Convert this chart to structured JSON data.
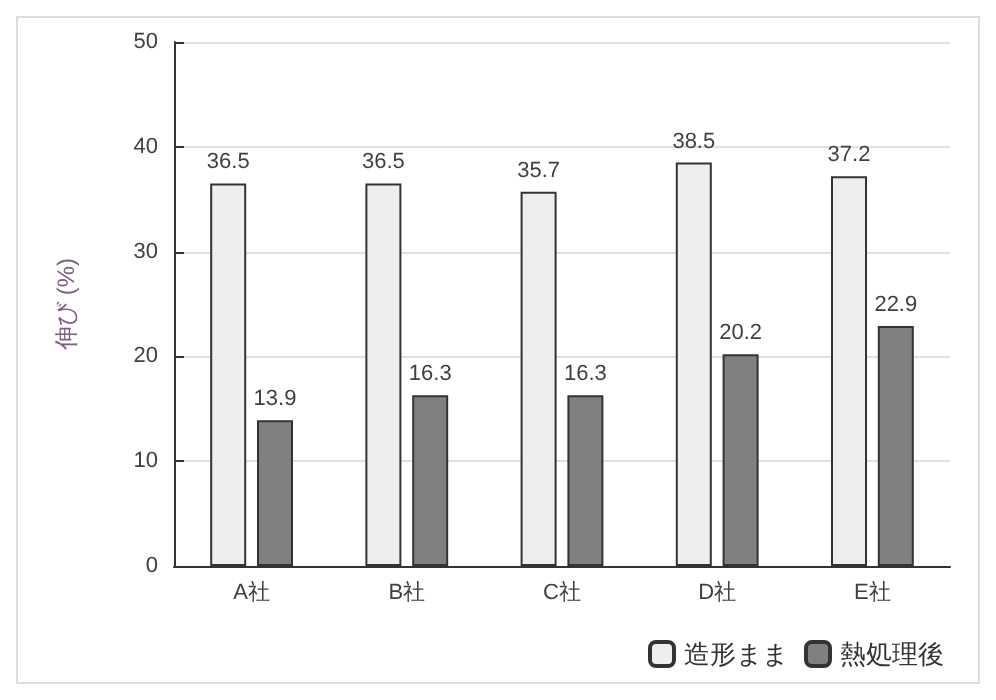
{
  "chart_data": {
    "type": "bar",
    "ylabel": "伸び (%)",
    "categories": [
      "A社",
      "B社",
      "C社",
      "D社",
      "E社"
    ],
    "series": [
      {
        "name": "造形まま",
        "color": "#eeeeee",
        "values": [
          36.5,
          36.5,
          35.7,
          38.5,
          37.2
        ]
      },
      {
        "name": "熱処理後",
        "color": "#808080",
        "values": [
          13.9,
          16.3,
          16.3,
          20.2,
          22.9
        ]
      }
    ],
    "ylim": [
      0,
      50
    ],
    "yticks": [
      0,
      10,
      20,
      30,
      40,
      50
    ],
    "grid": "y",
    "legend": "bottom right",
    "data_labels": true
  }
}
